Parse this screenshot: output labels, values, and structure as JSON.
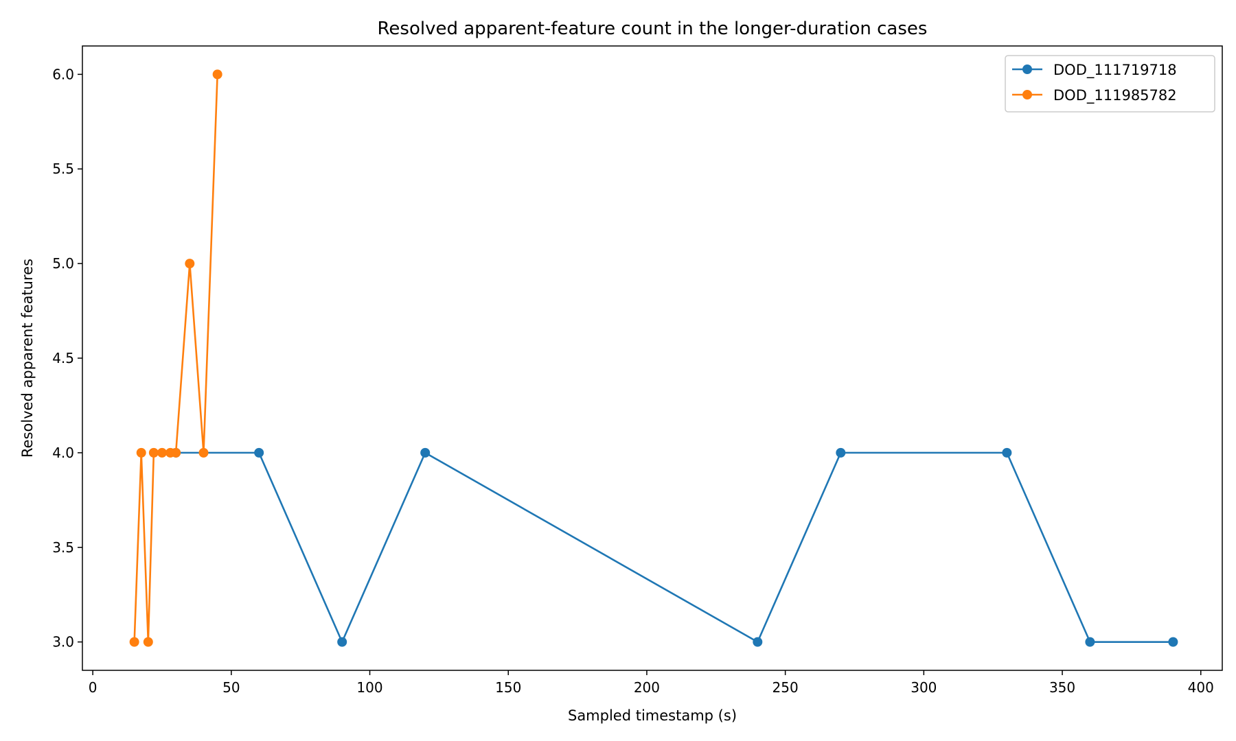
{
  "chart_data": {
    "type": "line",
    "title": "Resolved apparent-feature count in the longer-duration cases",
    "xlabel": "Sampled timestamp (s)",
    "ylabel": "Resolved apparent features",
    "xlim": [
      -3.75,
      407.75
    ],
    "ylim": [
      2.85,
      6.15
    ],
    "xticks": [
      0,
      50,
      100,
      150,
      200,
      250,
      300,
      350,
      400
    ],
    "xtick_labels": [
      "0",
      "50",
      "100",
      "150",
      "200",
      "250",
      "300",
      "350",
      "400"
    ],
    "yticks": [
      3.0,
      3.5,
      4.0,
      4.5,
      5.0,
      5.5,
      6.0
    ],
    "ytick_labels": [
      "3.0",
      "3.5",
      "4.0",
      "4.5",
      "5.0",
      "5.5",
      "6.0"
    ],
    "grid": false,
    "legend_position": "upper right",
    "series": [
      {
        "name": "DOD_111719718",
        "color": "#1f77b4",
        "marker": "circle",
        "x": [
          30,
          60,
          90,
          120,
          240,
          270,
          330,
          360,
          390
        ],
        "y": [
          4,
          4,
          3,
          4,
          3,
          4,
          4,
          3,
          3
        ]
      },
      {
        "name": "DOD_111985782",
        "color": "#ff7f0e",
        "marker": "circle",
        "x": [
          15,
          17.5,
          20,
          22,
          25,
          28,
          30,
          35,
          40,
          45
        ],
        "y": [
          3,
          4,
          3,
          4,
          4,
          4,
          4,
          5,
          4,
          6
        ]
      }
    ]
  }
}
